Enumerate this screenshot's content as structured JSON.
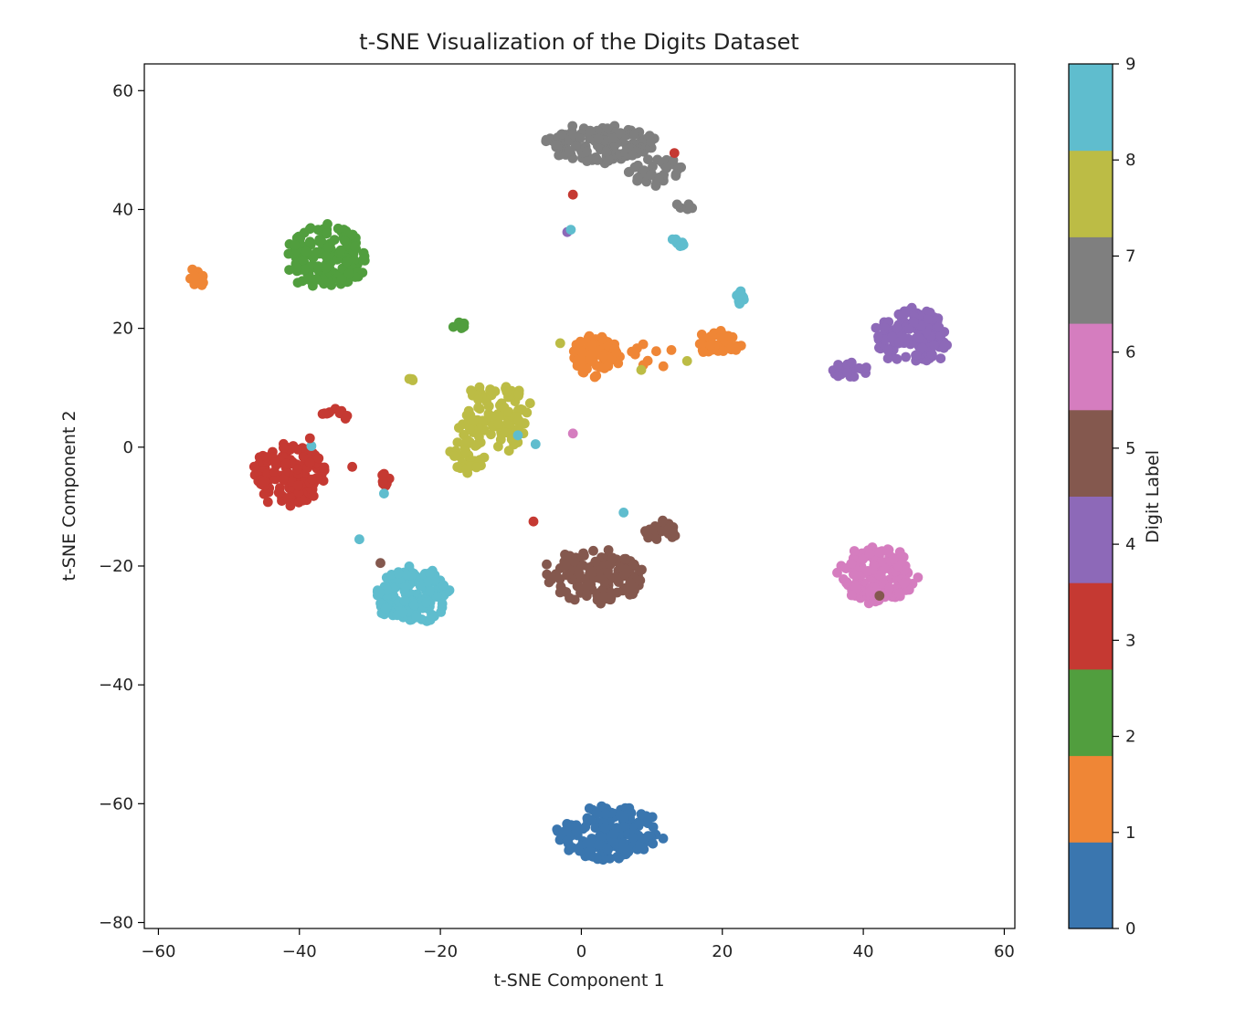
{
  "chart_data": {
    "type": "scatter",
    "title": "t-SNE Visualization of the Digits Dataset",
    "xlabel": "t-SNE Component 1",
    "ylabel": "t-SNE Component 2",
    "xlim": [
      -62,
      61.5
    ],
    "ylim": [
      -81,
      64.5
    ],
    "xticks": [
      -60,
      -40,
      -20,
      0,
      20,
      40,
      60
    ],
    "yticks": [
      -80,
      -60,
      -40,
      -20,
      0,
      20,
      40,
      60
    ],
    "grid": false,
    "colorbar": {
      "label": "Digit Label",
      "range": [
        0,
        9
      ],
      "ticks": [
        0,
        1,
        2,
        3,
        4,
        5,
        6,
        7,
        8,
        9
      ]
    },
    "classes": [
      {
        "label": 0,
        "color": "#3a76af"
      },
      {
        "label": 1,
        "color": "#ef8636"
      },
      {
        "label": 2,
        "color": "#519e3e"
      },
      {
        "label": 3,
        "color": "#c53932"
      },
      {
        "label": 4,
        "color": "#8d69b8"
      },
      {
        "label": 5,
        "color": "#84584e"
      },
      {
        "label": 6,
        "color": "#d57dbf"
      },
      {
        "label": 7,
        "color": "#7f7f7f"
      },
      {
        "label": 8,
        "color": "#bcbc45"
      },
      {
        "label": 9,
        "color": "#5fbdce"
      }
    ],
    "clusters": [
      {
        "label": 0,
        "cx": 4,
        "cy": -65,
        "rx": 7,
        "ry": 4.5,
        "n": 175
      },
      {
        "label": 1,
        "cx": 2,
        "cy": 15.5,
        "rx": 3.5,
        "ry": 3.5,
        "n": 80
      },
      {
        "label": 1,
        "cx": 19.5,
        "cy": 17.5,
        "rx": 3,
        "ry": 2,
        "n": 45
      },
      {
        "label": 1,
        "cx": -54.8,
        "cy": 28.5,
        "rx": 1.4,
        "ry": 1.6,
        "n": 14
      },
      {
        "label": 1,
        "cx": 10,
        "cy": 15.5,
        "rx": 3.5,
        "ry": 2.5,
        "n": 9
      },
      {
        "label": 2,
        "cx": -36,
        "cy": 32,
        "rx": 5.5,
        "ry": 5.5,
        "n": 160
      },
      {
        "label": 2,
        "cx": -17.5,
        "cy": 20.5,
        "rx": 1.5,
        "ry": 0.5,
        "n": 8
      },
      {
        "label": 3,
        "cx": -41.5,
        "cy": -4.5,
        "rx": 5,
        "ry": 5,
        "n": 155
      },
      {
        "label": 3,
        "cx": -35,
        "cy": 5.5,
        "rx": 2,
        "ry": 1,
        "n": 10
      },
      {
        "label": 3,
        "cx": -28,
        "cy": -5.5,
        "rx": 0.8,
        "ry": 1,
        "n": 10
      },
      {
        "label": 4,
        "cx": 47,
        "cy": 18.5,
        "rx": 5,
        "ry": 4.5,
        "n": 130
      },
      {
        "label": 4,
        "cx": 38,
        "cy": 13,
        "rx": 2.5,
        "ry": 1.2,
        "n": 22
      },
      {
        "label": 5,
        "cx": 2,
        "cy": -22,
        "rx": 7,
        "ry": 4.5,
        "n": 135
      },
      {
        "label": 5,
        "cx": 11,
        "cy": -14,
        "rx": 2.5,
        "ry": 1.8,
        "n": 30
      },
      {
        "label": 6,
        "cx": 42,
        "cy": -21.5,
        "rx": 5.5,
        "ry": 4.5,
        "n": 150
      },
      {
        "label": 7,
        "cx": 3,
        "cy": 51,
        "rx": 7.5,
        "ry": 3.2,
        "n": 140
      },
      {
        "label": 7,
        "cx": 11,
        "cy": 46.5,
        "rx": 4,
        "ry": 2.5,
        "n": 40
      },
      {
        "label": 7,
        "cx": 14.5,
        "cy": 40.5,
        "rx": 1.5,
        "ry": 0.5,
        "n": 8
      },
      {
        "label": 8,
        "cx": -12,
        "cy": 5,
        "rx": 5,
        "ry": 5.5,
        "n": 110
      },
      {
        "label": 8,
        "cx": -16.5,
        "cy": -1.5,
        "rx": 2.5,
        "ry": 3,
        "n": 40
      },
      {
        "label": 8,
        "cx": -24.5,
        "cy": 11.5,
        "rx": 0.8,
        "ry": 0.5,
        "n": 4
      },
      {
        "label": 9,
        "cx": -24,
        "cy": -25,
        "rx": 5,
        "ry": 4.5,
        "n": 165
      },
      {
        "label": 9,
        "cx": 22.5,
        "cy": 25,
        "rx": 1.2,
        "ry": 1.2,
        "n": 12
      },
      {
        "label": 9,
        "cx": 13.8,
        "cy": 34.5,
        "rx": 1,
        "ry": 0.9,
        "n": 9
      }
    ],
    "outliers": [
      {
        "label": 3,
        "x": 13.2,
        "y": 49.5
      },
      {
        "label": 3,
        "x": -1.2,
        "y": 42.5
      },
      {
        "label": 4,
        "x": -2,
        "y": 36.2
      },
      {
        "label": 9,
        "x": -1.5,
        "y": 36.6
      },
      {
        "label": 3,
        "x": -6.8,
        "y": -12.5
      },
      {
        "label": 9,
        "x": 6,
        "y": -11
      },
      {
        "label": 6,
        "x": -1.2,
        "y": 2.3
      },
      {
        "label": 9,
        "x": -9,
        "y": 2
      },
      {
        "label": 9,
        "x": -6.5,
        "y": 0.5
      },
      {
        "label": 9,
        "x": -38.3,
        "y": 0.2
      },
      {
        "label": 9,
        "x": -31.5,
        "y": -15.5
      },
      {
        "label": 9,
        "x": -28,
        "y": -7.8
      },
      {
        "label": 3,
        "x": -32.5,
        "y": -3.3
      },
      {
        "label": 5,
        "x": -28.5,
        "y": -19.5
      },
      {
        "label": 5,
        "x": 42.3,
        "y": -25
      },
      {
        "label": 8,
        "x": -3,
        "y": 17.5
      },
      {
        "label": 8,
        "x": 15,
        "y": 14.5
      },
      {
        "label": 8,
        "x": 8.5,
        "y": 13
      },
      {
        "label": 3,
        "x": -38.5,
        "y": 1.5
      }
    ]
  }
}
